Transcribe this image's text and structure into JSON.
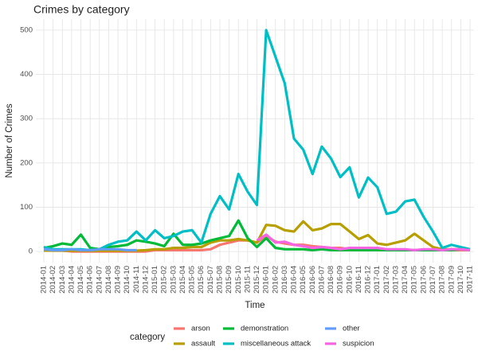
{
  "chart_data": {
    "type": "line",
    "title": "Crimes by category",
    "x_label": "Time",
    "y_label": "Number of Crimes",
    "legend_title": "category",
    "legend_position": "bottom",
    "grid": true,
    "categories": [
      "2014-01",
      "2014-02",
      "2014-03",
      "2014-04",
      "2014-05",
      "2014-06",
      "2014-07",
      "2014-08",
      "2014-09",
      "2014-10",
      "2014-11",
      "2014-12",
      "2015-01",
      "2015-02",
      "2015-03",
      "2015-04",
      "2015-05",
      "2015-06",
      "2015-07",
      "2015-08",
      "2015-09",
      "2015-10",
      "2015-11",
      "2015-12",
      "2016-01",
      "2016-02",
      "2016-03",
      "2016-04",
      "2016-05",
      "2016-06",
      "2016-07",
      "2016-08",
      "2016-09",
      "2016-10",
      "2016-11",
      "2016-12",
      "2017-01",
      "2017-02",
      "2017-03",
      "2017-04",
      "2017-05",
      "2017-06",
      "2017-07",
      "2017-08",
      "2017-09",
      "2017-10",
      "2017-11"
    ],
    "ylim": [
      -25,
      525
    ],
    "yticks": [
      0,
      100,
      200,
      300,
      400,
      500
    ],
    "series": [
      {
        "name": "arson",
        "color": "#F8766D",
        "values": [
          3,
          2,
          2,
          0,
          0,
          0,
          0,
          0,
          0,
          0,
          0,
          0,
          3,
          3,
          3,
          3,
          3,
          3,
          5,
          15,
          20,
          25,
          25,
          20,
          35,
          22,
          18,
          15,
          15,
          12,
          10,
          8,
          8,
          5,
          5,
          5,
          3,
          3,
          3,
          3,
          3,
          3,
          3,
          3,
          3,
          3,
          3
        ]
      },
      {
        "name": "assault",
        "color": "#B79F00",
        "values": [
          2,
          2,
          2,
          2,
          2,
          2,
          2,
          2,
          2,
          2,
          2,
          3,
          5,
          5,
          8,
          8,
          10,
          10,
          20,
          25,
          25,
          28,
          25,
          20,
          60,
          58,
          48,
          45,
          68,
          48,
          52,
          62,
          62,
          45,
          28,
          37,
          18,
          15,
          20,
          25,
          40,
          25,
          10,
          5,
          5,
          5,
          3
        ]
      },
      {
        "name": "demonstration",
        "color": "#00BA38",
        "values": [
          8,
          12,
          18,
          15,
          38,
          8,
          5,
          10,
          12,
          15,
          25,
          22,
          18,
          12,
          40,
          15,
          15,
          18,
          25,
          30,
          35,
          70,
          30,
          10,
          30,
          8,
          5,
          5,
          5,
          3,
          5,
          3,
          3,
          3,
          3,
          3,
          3,
          3,
          3,
          3,
          3,
          3,
          3,
          3,
          3,
          5,
          3
        ]
      },
      {
        "name": "miscellaneous attack",
        "color": "#00BFC4",
        "values": [
          10,
          5,
          5,
          5,
          5,
          3,
          5,
          15,
          22,
          25,
          45,
          25,
          48,
          30,
          35,
          45,
          48,
          20,
          85,
          125,
          95,
          175,
          135,
          105,
          500,
          440,
          380,
          255,
          230,
          175,
          237,
          210,
          168,
          190,
          122,
          167,
          145,
          85,
          90,
          113,
          117,
          78,
          45,
          8,
          15,
          10,
          5
        ]
      },
      {
        "name": "other",
        "color": "#619CFF",
        "values": [
          5,
          3,
          3,
          5,
          3,
          3,
          5,
          5,
          5,
          3,
          3,
          null,
          null,
          null,
          null,
          null,
          null,
          null,
          null,
          null,
          null,
          null,
          null,
          null,
          null,
          null,
          null,
          null,
          null,
          null,
          null,
          null,
          null,
          null,
          null,
          null,
          null,
          null,
          null,
          null,
          null,
          null,
          null,
          null,
          null,
          null,
          null
        ]
      },
      {
        "name": "suspicion",
        "color": "#F564E3",
        "values": [
          null,
          null,
          null,
          null,
          null,
          null,
          null,
          null,
          null,
          null,
          null,
          null,
          null,
          null,
          null,
          null,
          null,
          null,
          null,
          null,
          null,
          null,
          null,
          25,
          38,
          20,
          22,
          15,
          12,
          8,
          10,
          8,
          5,
          8,
          8,
          8,
          8,
          5,
          5,
          5,
          3,
          5,
          5,
          3,
          5,
          5,
          3
        ]
      }
    ]
  }
}
